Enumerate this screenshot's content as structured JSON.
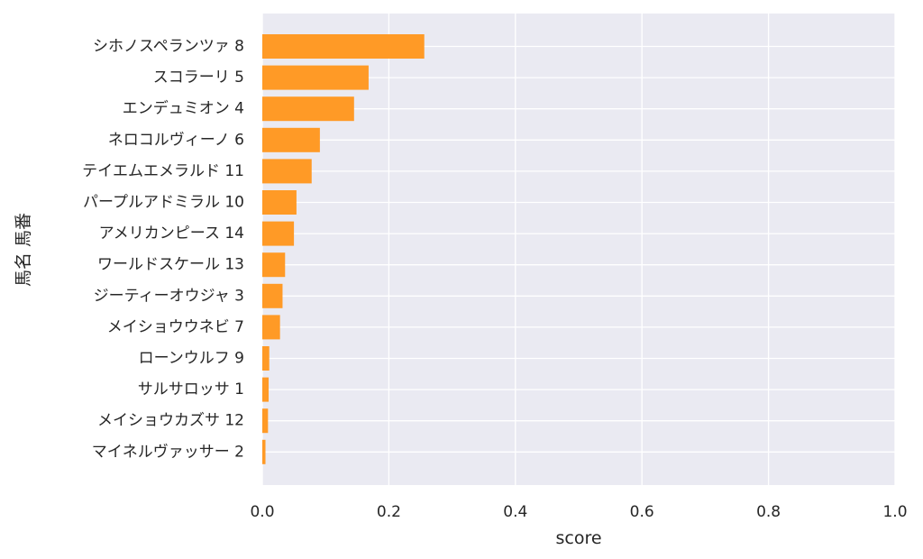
{
  "chart_data": {
    "type": "bar",
    "orientation": "horizontal",
    "categories": [
      "シホノスペランツァ 8",
      "スコラーリ 5",
      "エンデュミオン 4",
      "ネロコルヴィーノ 6",
      "テイエムエメラルド 11",
      "パープルアドミラル 10",
      "アメリカンピース 14",
      "ワールドスケール 13",
      "ジーティーオウジャ 3",
      "メイショウウネビ 7",
      "ローンウルフ 9",
      "サルサロッサ 1",
      "メイショウカズサ 12",
      "マイネルヴァッサー 2"
    ],
    "values": [
      0.256,
      0.168,
      0.145,
      0.091,
      0.078,
      0.054,
      0.05,
      0.036,
      0.032,
      0.028,
      0.011,
      0.01,
      0.009,
      0.005
    ],
    "xlabel": "score",
    "ylabel": "馬名 馬番",
    "xlim": [
      0,
      1.0
    ],
    "xticks": [
      "0.0",
      "0.2",
      "0.4",
      "0.6",
      "0.8",
      "1.0"
    ],
    "grid": true,
    "bar_color": "#ff9a26",
    "background_color": "#eaeaf2",
    "grid_color": "#ffffff"
  }
}
